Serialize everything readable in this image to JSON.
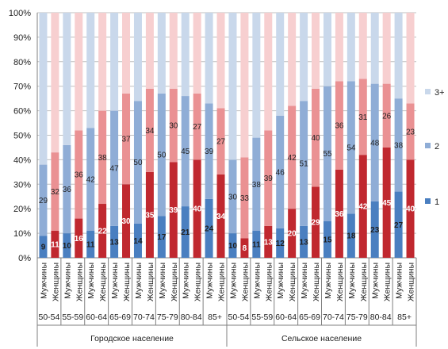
{
  "chart_data": {
    "type": "bar",
    "stacked": "percent",
    "ylim": [
      0,
      100
    ],
    "y_ticks": [
      "0%",
      "10%",
      "20%",
      "30%",
      "40%",
      "50%",
      "60%",
      "70%",
      "80%",
      "90%",
      "100%"
    ],
    "grid": true,
    "legend_position": "right",
    "groups": [
      "Городское население",
      "Сельское население"
    ],
    "age_groups": [
      "50-54",
      "55-59",
      "60-64",
      "65-69",
      "70-74",
      "75-79",
      "80-84",
      "85+"
    ],
    "sex_labels": [
      "Мужчины",
      "Женщины"
    ],
    "series": [
      {
        "name": "1",
        "values": [
          9,
          11,
          10,
          16,
          11,
          22,
          13,
          30,
          14,
          35,
          17,
          39,
          21,
          40,
          24,
          34,
          10,
          8,
          11,
          13,
          12,
          20,
          13,
          29,
          15,
          36,
          18,
          42,
          23,
          45,
          27,
          40
        ]
      },
      {
        "name": "2",
        "values": [
          29,
          32,
          36,
          36,
          42,
          38,
          47,
          37,
          50,
          34,
          50,
          30,
          45,
          27,
          39,
          27,
          30,
          33,
          38,
          39,
          46,
          42,
          51,
          40,
          55,
          36,
          54,
          31,
          48,
          26,
          38,
          23
        ]
      },
      {
        "name": "3+",
        "values": [
          62,
          57,
          54,
          48,
          47,
          40,
          40,
          33,
          36,
          31,
          33,
          31,
          34,
          33,
          37,
          39,
          60,
          59,
          51,
          48,
          42,
          38,
          36,
          31,
          30,
          28,
          28,
          27,
          29,
          29,
          35,
          37
        ]
      }
    ],
    "labeled_series": [
      "1",
      "2"
    ]
  },
  "colors": {
    "men": [
      "#4a7fc0",
      "#8fadd6",
      "#c9d8eb"
    ],
    "women": [
      "#c0282f",
      "#ea9193",
      "#f7cfd0"
    ],
    "men_label_text": "#1f1f1f",
    "women_label_text": "#ffffff",
    "women_label_text_upper": "#1f1f1f",
    "grid": "#bfbfbf",
    "axis": "#7f7f7f",
    "legend": [
      "#4a7fc0",
      "#8fadd6",
      "#c9d8eb"
    ]
  }
}
